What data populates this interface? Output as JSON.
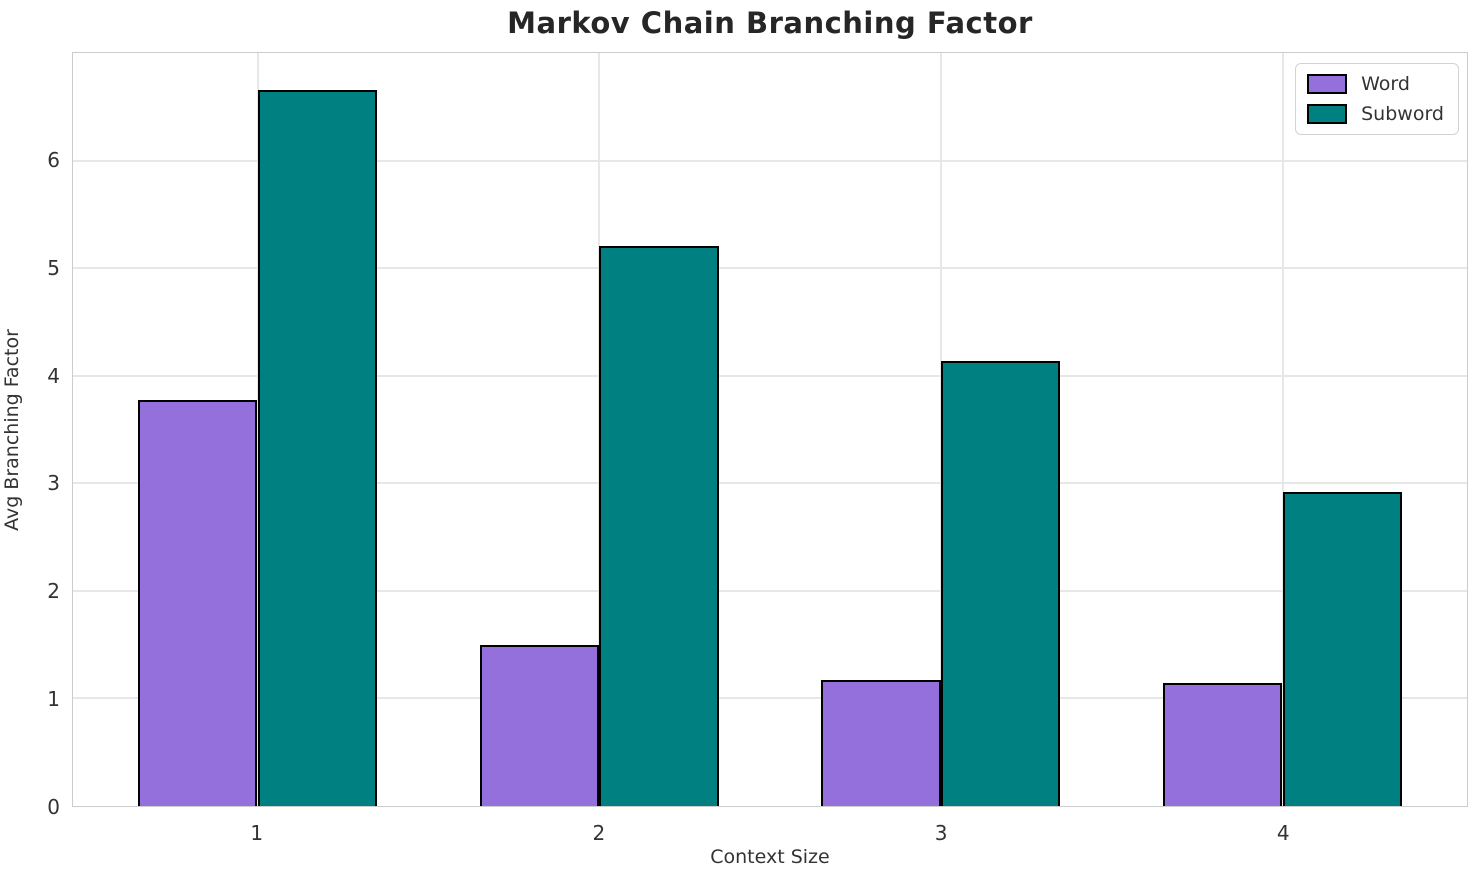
{
  "chart_data": {
    "type": "bar",
    "title": "Markov Chain Branching Factor",
    "xlabel": "Context Size",
    "ylabel": "Avg Branching Factor",
    "categories": [
      "1",
      "2",
      "3",
      "4"
    ],
    "series": [
      {
        "name": "Word",
        "color": "#9370db",
        "values": [
          3.77,
          1.5,
          1.17,
          1.14
        ]
      },
      {
        "name": "Subword",
        "color": "#008080",
        "values": [
          6.66,
          5.21,
          4.14,
          2.92
        ]
      }
    ],
    "bar_width_units": 0.35,
    "bar_edge_color": "#000000",
    "xlim": [
      0.46,
      4.54
    ],
    "ylim": [
      0,
      7
    ],
    "yticks": [
      "0",
      "1",
      "2",
      "3",
      "4",
      "5",
      "6"
    ],
    "grid": "both",
    "legend_position": "upper-right",
    "colors": {
      "grid": "#e7e7e7",
      "spine": "#cccccc",
      "title_text": "#262626",
      "tick_text": "#333333"
    }
  }
}
